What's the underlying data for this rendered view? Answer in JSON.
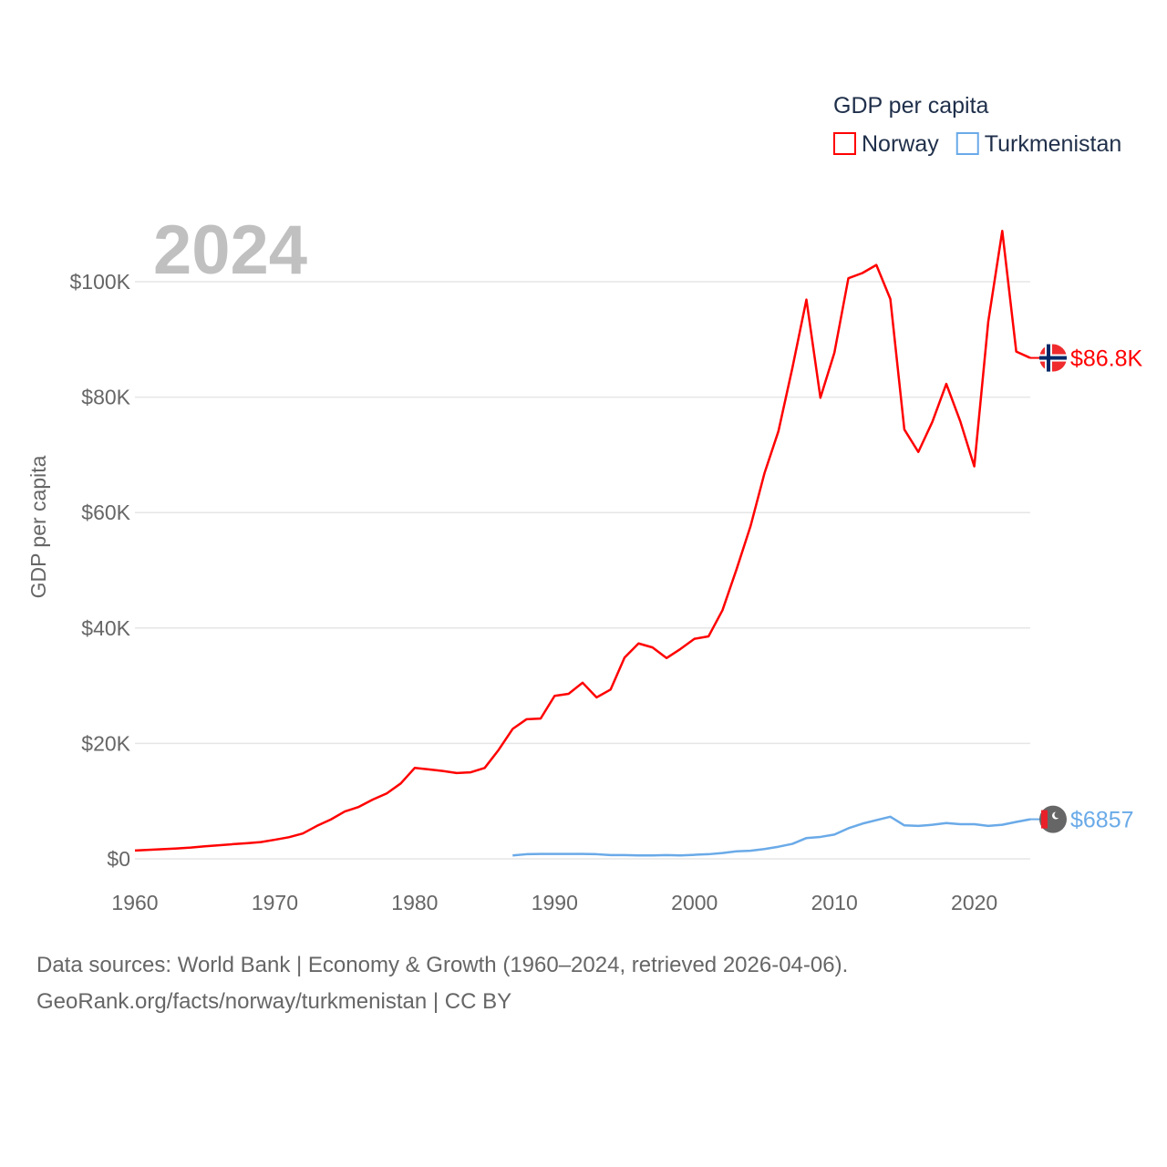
{
  "chart_data": {
    "type": "line",
    "title": "GDP per capita",
    "year_label": "2024",
    "ylabel": "GDP per capita",
    "xlabel": "",
    "xlim": [
      1960,
      2024
    ],
    "ylim": [
      0,
      110000
    ],
    "grid": true,
    "legend_placement": "top-right",
    "x_ticks": [
      1960,
      1970,
      1980,
      1990,
      2000,
      2010,
      2020
    ],
    "x_tick_labels": [
      "1960",
      "1970",
      "1980",
      "1990",
      "2000",
      "2010",
      "2020"
    ],
    "y_ticks": [
      0,
      20000,
      40000,
      60000,
      80000,
      100000
    ],
    "y_tick_labels": [
      "$0",
      "$20K",
      "$40K",
      "$60K",
      "$80K",
      "$100K"
    ],
    "series": [
      {
        "name": "Norway",
        "color": "#ff0000",
        "end_label": "$86.8K",
        "flag": "norway-flag",
        "start_year": 1960,
        "values": [
          1440,
          1560,
          1670,
          1790,
          1950,
          2170,
          2350,
          2540,
          2700,
          2910,
          3310,
          3740,
          4390,
          5700,
          6810,
          8200,
          9000,
          10270,
          11340,
          13060,
          15750,
          15510,
          15220,
          14870,
          14990,
          15750,
          18880,
          22510,
          24200,
          24310,
          28240,
          28600,
          30520,
          27970,
          29330,
          34880,
          37320,
          36630,
          34790,
          36370,
          38130,
          38540,
          43080,
          50130,
          57600,
          66800,
          74100,
          85100,
          96900,
          79900,
          87700,
          100600,
          101500,
          102900,
          97000,
          74400,
          70500,
          75700,
          82300,
          75800,
          68000,
          93100,
          108800,
          87900,
          86800
        ]
      },
      {
        "name": "Turkmenistan",
        "color": "#6aaae8",
        "end_label": "$6857",
        "flag": "turkmenistan-flag",
        "start_year": 1987,
        "values": [
          600,
          800,
          850,
          850,
          850,
          850,
          800,
          650,
          650,
          600,
          600,
          650,
          600,
          700,
          800,
          1000,
          1300,
          1400,
          1700,
          2100,
          2600,
          3600,
          3800,
          4200,
          5300,
          6100,
          6700,
          7300,
          5800,
          5700,
          5900,
          6200,
          6000,
          6000,
          5700,
          5900,
          6400,
          6857
        ]
      }
    ]
  },
  "footer": {
    "line1": "Data sources: World Bank | Economy & Growth (1960–2024, retrieved 2026-04-06).",
    "line2": "GeoRank.org/facts/norway/turkmenistan | CC BY"
  }
}
